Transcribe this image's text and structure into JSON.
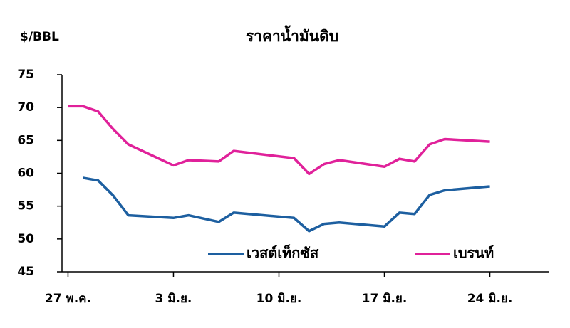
{
  "chart_data": {
    "type": "line",
    "title": "ราคาน้ำมันดิบ",
    "y_label": "$/BBL",
    "x": [
      0,
      1,
      2,
      3,
      4,
      7,
      8,
      10,
      11,
      15,
      16,
      17,
      18,
      21,
      22,
      23,
      24,
      25,
      28
    ],
    "xlim": [
      -0.4,
      31.9
    ],
    "xticks": [
      {
        "value": 0,
        "label": "27 พ.ค."
      },
      {
        "value": 7,
        "label": "3 มิ.ย."
      },
      {
        "value": 14,
        "label": "10 มิ.ย."
      },
      {
        "value": 21,
        "label": "17 มิ.ย."
      },
      {
        "value": 28,
        "label": "24 มิ.ย."
      }
    ],
    "ylim": [
      45,
      75
    ],
    "yticks": [
      45,
      50,
      55,
      60,
      65,
      70,
      75
    ],
    "series": [
      {
        "name": "เวสต์เท็กซัส",
        "color": "#1d5fa0",
        "values": [
          null,
          59.3,
          58.9,
          56.6,
          53.6,
          53.2,
          53.6,
          52.6,
          54.0,
          53.2,
          51.2,
          52.3,
          52.5,
          51.9,
          54.0,
          53.8,
          56.7,
          57.4,
          58.0
        ]
      },
      {
        "name": "เบรนท์",
        "color": "#e0219a",
        "values": [
          70.2,
          70.2,
          69.4,
          66.7,
          64.4,
          61.2,
          62.0,
          61.8,
          63.4,
          62.3,
          59.9,
          61.4,
          62.0,
          61.0,
          62.2,
          61.8,
          64.4,
          65.2,
          64.8
        ]
      }
    ]
  }
}
